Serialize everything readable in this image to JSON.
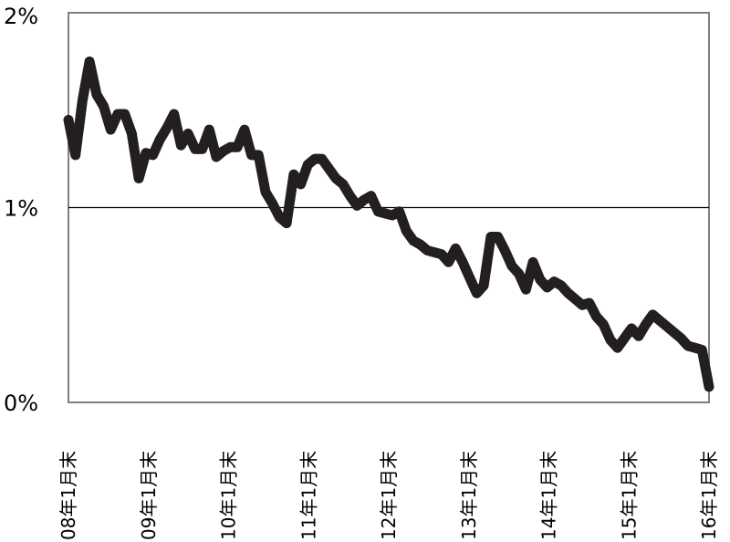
{
  "chart_data": {
    "type": "line",
    "title": "",
    "xlabel": "",
    "ylabel": "",
    "ylim": [
      0,
      2
    ],
    "y_tick_labels": [
      "0%",
      "1%",
      "2%"
    ],
    "y_tick_values": [
      0,
      1,
      2
    ],
    "x_tick_labels": [
      "08年1月末",
      "09年1月末",
      "10年1月末",
      "11年1月末",
      "12年1月末",
      "13年1月末",
      "14年1月末",
      "15年1月末",
      "16年1月末"
    ],
    "reference_line": 1,
    "grid": false,
    "line_color": "#231f20",
    "frame_color": "#808080",
    "series": [
      {
        "values": [
          1.45,
          1.27,
          1.55,
          1.75,
          1.58,
          1.52,
          1.4,
          1.48,
          1.48,
          1.38,
          1.15,
          1.28,
          1.27,
          1.35,
          1.41,
          1.48,
          1.32,
          1.38,
          1.3,
          1.3,
          1.4,
          1.26,
          1.29,
          1.31,
          1.31,
          1.4,
          1.27,
          1.27,
          1.08,
          1.02,
          0.95,
          0.92,
          1.17,
          1.12,
          1.22,
          1.25,
          1.25,
          1.2,
          1.15,
          1.12,
          1.06,
          1.01,
          1.04,
          1.06,
          0.98,
          0.97,
          0.96,
          0.98,
          0.88,
          0.83,
          0.81,
          0.78,
          0.77,
          0.76,
          0.72,
          0.79,
          0.72,
          0.64,
          0.56,
          0.6,
          0.85,
          0.85,
          0.78,
          0.7,
          0.66,
          0.58,
          0.72,
          0.63,
          0.59,
          0.62,
          0.6,
          0.56,
          0.53,
          0.5,
          0.51,
          0.44,
          0.4,
          0.32,
          0.28,
          0.33,
          0.38,
          0.34,
          0.4,
          0.45,
          0.42,
          0.39,
          0.36,
          0.33,
          0.29,
          0.28,
          0.27,
          0.08
        ]
      }
    ]
  }
}
